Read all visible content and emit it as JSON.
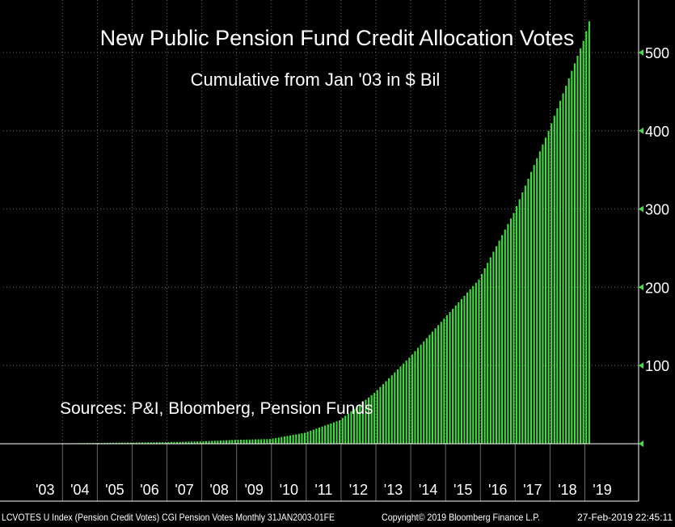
{
  "chart_data": {
    "type": "bar",
    "title": "New Public Pension Fund Credit Allocation Votes",
    "subtitle": "Cumulative from Jan '03 in $ Bil",
    "annotation": "Sources: P&I, Bloomberg, Pension Funds",
    "xlabel": "",
    "ylabel": "",
    "ylim": [
      0,
      560
    ],
    "y_ticks": [
      100,
      200,
      300,
      400,
      500
    ],
    "y_tick_labels": [
      "100",
      "200",
      "300",
      "400",
      "500"
    ],
    "grid": true,
    "x_start": "2003-01",
    "x_end": "2019-02",
    "x_tick_labels": [
      "'03",
      "'04",
      "'05",
      "'06",
      "'07",
      "'08",
      "'09",
      "'10",
      "'11",
      "'12",
      "'13",
      "'14",
      "'15",
      "'16",
      "'17",
      "'18",
      "'19"
    ],
    "bar_color": "#3ee03e",
    "year_end_values": [
      {
        "year": 2003,
        "value": 0.5
      },
      {
        "year": 2004,
        "value": 1
      },
      {
        "year": 2005,
        "value": 1.5
      },
      {
        "year": 2006,
        "value": 2
      },
      {
        "year": 2007,
        "value": 3
      },
      {
        "year": 2008,
        "value": 5
      },
      {
        "year": 2009,
        "value": 6
      },
      {
        "year": 2010,
        "value": 14
      },
      {
        "year": 2011,
        "value": 30
      },
      {
        "year": 2012,
        "value": 65
      },
      {
        "year": 2013,
        "value": 110
      },
      {
        "year": 2014,
        "value": 160
      },
      {
        "year": 2015,
        "value": 210
      },
      {
        "year": 2016,
        "value": 295
      },
      {
        "year": 2017,
        "value": 400
      },
      {
        "year": 2018,
        "value": 515
      },
      {
        "year": 2019,
        "value": 540
      }
    ]
  },
  "footer": {
    "left": "LCVOTES U Index (Pension Credit Votes) CGI Pension Votes  Monthly 31JAN2003-01FE",
    "center": "Copyright© 2019 Bloomberg Finance L.P.",
    "right": "27-Feb-2019 22:45:11"
  },
  "colors": {
    "background": "#000000",
    "grid": "#6a6a6a",
    "axis": "#ffffff",
    "marker": "#3ee03e"
  }
}
